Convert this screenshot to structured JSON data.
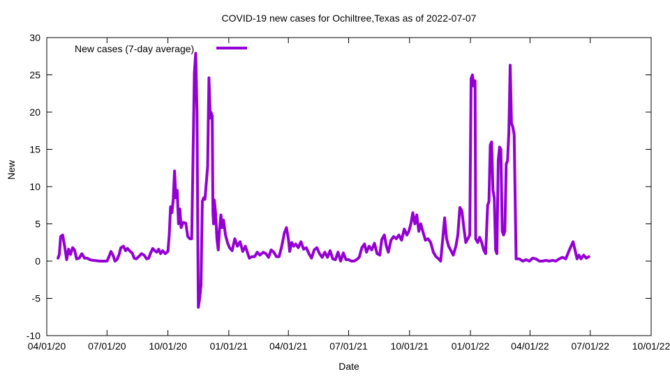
{
  "chart_data": {
    "type": "line",
    "title": "COVID-19 new cases for Ochiltree,Texas as of 2022-07-07",
    "xlabel": "Date",
    "ylabel": "New",
    "ylim": [
      -10,
      30
    ],
    "yticks": [
      "-10",
      "-5",
      "0",
      "5",
      "10",
      "15",
      "20",
      "25",
      "30"
    ],
    "xticks": [
      "04/01/20",
      "07/01/20",
      "10/01/20",
      "01/01/21",
      "04/01/21",
      "07/01/21",
      "10/01/21",
      "01/01/22",
      "04/01/22",
      "07/01/22",
      "10/01/22"
    ],
    "grid": false,
    "legend_position": "top-left",
    "color": "#9400d3",
    "series": [
      {
        "name": "New cases (7-day average)",
        "points": [
          [
            "2020-04-18",
            0.4
          ],
          [
            "2020-04-20",
            0.9
          ],
          [
            "2020-04-22",
            3.3
          ],
          [
            "2020-04-25",
            3.5
          ],
          [
            "2020-04-28",
            2.0
          ],
          [
            "2020-05-01",
            0.2
          ],
          [
            "2020-05-04",
            1.6
          ],
          [
            "2020-05-07",
            0.9
          ],
          [
            "2020-05-10",
            1.8
          ],
          [
            "2020-05-13",
            1.5
          ],
          [
            "2020-05-16",
            0.3
          ],
          [
            "2020-05-20",
            0.4
          ],
          [
            "2020-05-24",
            1.0
          ],
          [
            "2020-05-28",
            0.4
          ],
          [
            "2020-06-01",
            0.4
          ],
          [
            "2020-06-05",
            0.2
          ],
          [
            "2020-06-10",
            0.1
          ],
          [
            "2020-06-20",
            0.0
          ],
          [
            "2020-06-27",
            0.0
          ],
          [
            "2020-07-01",
            0.0
          ],
          [
            "2020-07-04",
            0.6
          ],
          [
            "2020-07-07",
            1.3
          ],
          [
            "2020-07-10",
            0.8
          ],
          [
            "2020-07-13",
            0.0
          ],
          [
            "2020-07-16",
            0.2
          ],
          [
            "2020-07-19",
            0.8
          ],
          [
            "2020-07-22",
            1.8
          ],
          [
            "2020-07-26",
            2.0
          ],
          [
            "2020-07-29",
            1.4
          ],
          [
            "2020-08-01",
            1.7
          ],
          [
            "2020-08-05",
            1.3
          ],
          [
            "2020-08-08",
            1.1
          ],
          [
            "2020-08-11",
            0.4
          ],
          [
            "2020-08-14",
            0.3
          ],
          [
            "2020-08-18",
            0.6
          ],
          [
            "2020-08-22",
            1.0
          ],
          [
            "2020-08-26",
            0.8
          ],
          [
            "2020-08-30",
            0.3
          ],
          [
            "2020-09-02",
            0.4
          ],
          [
            "2020-09-05",
            1.1
          ],
          [
            "2020-09-08",
            1.7
          ],
          [
            "2020-09-11",
            1.4
          ],
          [
            "2020-09-14",
            1.2
          ],
          [
            "2020-09-17",
            1.6
          ],
          [
            "2020-09-20",
            1.0
          ],
          [
            "2020-09-23",
            1.4
          ],
          [
            "2020-09-27",
            1.0
          ],
          [
            "2020-10-01",
            1.3
          ],
          [
            "2020-10-03",
            3.5
          ],
          [
            "2020-10-05",
            7.3
          ],
          [
            "2020-10-07",
            6.5
          ],
          [
            "2020-10-09",
            8.2
          ],
          [
            "2020-10-11",
            12.1
          ],
          [
            "2020-10-13",
            8.5
          ],
          [
            "2020-10-15",
            9.5
          ],
          [
            "2020-10-17",
            5.0
          ],
          [
            "2020-10-19",
            7.0
          ],
          [
            "2020-10-21",
            4.5
          ],
          [
            "2020-10-24",
            5.2
          ],
          [
            "2020-10-28",
            5.1
          ],
          [
            "2020-10-31",
            3.3
          ],
          [
            "2020-11-03",
            3.0
          ],
          [
            "2020-11-06",
            3.0
          ],
          [
            "2020-11-08",
            14.0
          ],
          [
            "2020-11-10",
            25.2
          ],
          [
            "2020-11-12",
            27.9
          ],
          [
            "2020-11-14",
            20.0
          ],
          [
            "2020-11-15",
            5.0
          ],
          [
            "2020-11-16",
            -6.2
          ],
          [
            "2020-11-18",
            -5.0
          ],
          [
            "2020-11-20",
            -3.2
          ],
          [
            "2020-11-22",
            8.0
          ],
          [
            "2020-11-24",
            8.5
          ],
          [
            "2020-11-26",
            8.3
          ],
          [
            "2020-11-28",
            10.5
          ],
          [
            "2020-11-30",
            12.7
          ],
          [
            "2020-12-02",
            24.6
          ],
          [
            "2020-12-04",
            19.2
          ],
          [
            "2020-12-05",
            20.0
          ],
          [
            "2020-12-07",
            19.5
          ],
          [
            "2020-12-08",
            6.5
          ],
          [
            "2020-12-09",
            5.0
          ],
          [
            "2020-12-10",
            8.2
          ],
          [
            "2020-12-12",
            6.5
          ],
          [
            "2020-12-14",
            3.0
          ],
          [
            "2020-12-16",
            1.5
          ],
          [
            "2020-12-18",
            4.3
          ],
          [
            "2020-12-20",
            6.2
          ],
          [
            "2020-12-22",
            4.5
          ],
          [
            "2020-12-24",
            5.5
          ],
          [
            "2020-12-27",
            3.5
          ],
          [
            "2020-12-30",
            2.5
          ],
          [
            "2021-01-02",
            1.8
          ],
          [
            "2021-01-06",
            1.4
          ],
          [
            "2021-01-10",
            3.0
          ],
          [
            "2021-01-14",
            2.0
          ],
          [
            "2021-01-18",
            2.6
          ],
          [
            "2021-01-22",
            1.3
          ],
          [
            "2021-01-26",
            2.0
          ],
          [
            "2021-01-29",
            1.2
          ],
          [
            "2021-02-01",
            0.4
          ],
          [
            "2021-02-05",
            0.6
          ],
          [
            "2021-02-09",
            0.6
          ],
          [
            "2021-02-13",
            1.2
          ],
          [
            "2021-02-17",
            0.8
          ],
          [
            "2021-02-22",
            1.2
          ],
          [
            "2021-02-26",
            1.0
          ],
          [
            "2021-03-02",
            0.5
          ],
          [
            "2021-03-06",
            1.5
          ],
          [
            "2021-03-10",
            1.2
          ],
          [
            "2021-03-14",
            0.6
          ],
          [
            "2021-03-18",
            0.6
          ],
          [
            "2021-03-22",
            2.0
          ],
          [
            "2021-03-26",
            3.8
          ],
          [
            "2021-03-29",
            4.5
          ],
          [
            "2021-04-01",
            3.0
          ],
          [
            "2021-04-03",
            1.3
          ],
          [
            "2021-04-06",
            2.5
          ],
          [
            "2021-04-09",
            2.0
          ],
          [
            "2021-04-12",
            2.3
          ],
          [
            "2021-04-16",
            1.8
          ],
          [
            "2021-04-20",
            2.6
          ],
          [
            "2021-04-24",
            1.6
          ],
          [
            "2021-04-28",
            1.8
          ],
          [
            "2021-05-02",
            1.0
          ],
          [
            "2021-05-06",
            0.4
          ],
          [
            "2021-05-10",
            1.5
          ],
          [
            "2021-05-14",
            1.8
          ],
          [
            "2021-05-18",
            1.0
          ],
          [
            "2021-05-22",
            0.5
          ],
          [
            "2021-05-26",
            1.2
          ],
          [
            "2021-05-30",
            0.5
          ],
          [
            "2021-06-03",
            1.4
          ],
          [
            "2021-06-07",
            0.3
          ],
          [
            "2021-06-11",
            0.2
          ],
          [
            "2021-06-15",
            1.2
          ],
          [
            "2021-06-19",
            0.0
          ],
          [
            "2021-06-23",
            1.1
          ],
          [
            "2021-06-27",
            0.2
          ],
          [
            "2021-07-01",
            0.2
          ],
          [
            "2021-07-05",
            0.0
          ],
          [
            "2021-07-09",
            0.0
          ],
          [
            "2021-07-13",
            0.2
          ],
          [
            "2021-07-17",
            0.5
          ],
          [
            "2021-07-21",
            1.8
          ],
          [
            "2021-07-25",
            2.3
          ],
          [
            "2021-07-28",
            1.2
          ],
          [
            "2021-08-01",
            2.0
          ],
          [
            "2021-08-05",
            1.5
          ],
          [
            "2021-08-09",
            2.4
          ],
          [
            "2021-08-13",
            1.0
          ],
          [
            "2021-08-17",
            0.8
          ],
          [
            "2021-08-20",
            2.9
          ],
          [
            "2021-08-24",
            3.5
          ],
          [
            "2021-08-27",
            2.0
          ],
          [
            "2021-08-30",
            1.2
          ],
          [
            "2021-09-03",
            2.8
          ],
          [
            "2021-09-07",
            3.3
          ],
          [
            "2021-09-11",
            3.0
          ],
          [
            "2021-09-15",
            3.5
          ],
          [
            "2021-09-19",
            2.8
          ],
          [
            "2021-09-23",
            4.3
          ],
          [
            "2021-09-27",
            3.5
          ],
          [
            "2021-09-30",
            4.0
          ],
          [
            "2021-10-03",
            5.0
          ],
          [
            "2021-10-06",
            6.5
          ],
          [
            "2021-10-09",
            5.0
          ],
          [
            "2021-10-12",
            6.2
          ],
          [
            "2021-10-15",
            4.0
          ],
          [
            "2021-10-18",
            5.0
          ],
          [
            "2021-10-21",
            4.0
          ],
          [
            "2021-10-25",
            2.8
          ],
          [
            "2021-10-29",
            3.0
          ],
          [
            "2021-11-02",
            2.5
          ],
          [
            "2021-11-06",
            1.2
          ],
          [
            "2021-11-10",
            0.6
          ],
          [
            "2021-11-14",
            0.3
          ],
          [
            "2021-11-17",
            0.0
          ],
          [
            "2021-11-20",
            2.8
          ],
          [
            "2021-11-23",
            5.8
          ],
          [
            "2021-11-26",
            3.0
          ],
          [
            "2021-11-29",
            2.0
          ],
          [
            "2021-12-02",
            1.5
          ],
          [
            "2021-12-06",
            0.8
          ],
          [
            "2021-12-10",
            2.0
          ],
          [
            "2021-12-13",
            3.5
          ],
          [
            "2021-12-16",
            7.2
          ],
          [
            "2021-12-19",
            6.8
          ],
          [
            "2021-12-22",
            4.5
          ],
          [
            "2021-12-25",
            2.5
          ],
          [
            "2021-12-28",
            3.0
          ],
          [
            "2021-12-31",
            3.5
          ],
          [
            "2022-01-02",
            24.5
          ],
          [
            "2022-01-04",
            25.0
          ],
          [
            "2022-01-06",
            23.5
          ],
          [
            "2022-01-08",
            24.2
          ],
          [
            "2022-01-09",
            3.0
          ],
          [
            "2022-01-12",
            2.5
          ],
          [
            "2022-01-15",
            3.2
          ],
          [
            "2022-01-18",
            2.5
          ],
          [
            "2022-01-21",
            1.5
          ],
          [
            "2022-01-24",
            1.0
          ],
          [
            "2022-01-27",
            7.5
          ],
          [
            "2022-01-29",
            8.0
          ],
          [
            "2022-01-31",
            15.6
          ],
          [
            "2022-02-02",
            16.0
          ],
          [
            "2022-02-04",
            9.5
          ],
          [
            "2022-02-06",
            8.5
          ],
          [
            "2022-02-08",
            1.5
          ],
          [
            "2022-02-10",
            1.0
          ],
          [
            "2022-02-12",
            13.5
          ],
          [
            "2022-02-14",
            15.3
          ],
          [
            "2022-02-16",
            15.0
          ],
          [
            "2022-02-18",
            4.0
          ],
          [
            "2022-02-20",
            3.5
          ],
          [
            "2022-02-22",
            4.0
          ],
          [
            "2022-02-24",
            13.0
          ],
          [
            "2022-02-26",
            13.5
          ],
          [
            "2022-02-28",
            17.3
          ],
          [
            "2022-03-02",
            26.3
          ],
          [
            "2022-03-04",
            18.5
          ],
          [
            "2022-03-06",
            18.0
          ],
          [
            "2022-03-08",
            17.0
          ],
          [
            "2022-03-11",
            0.3
          ],
          [
            "2022-03-16",
            0.3
          ],
          [
            "2022-03-21",
            0.0
          ],
          [
            "2022-03-26",
            0.2
          ],
          [
            "2022-03-31",
            0.0
          ],
          [
            "2022-04-05",
            0.4
          ],
          [
            "2022-04-10",
            0.3
          ],
          [
            "2022-04-15",
            0.0
          ],
          [
            "2022-04-20",
            0.0
          ],
          [
            "2022-04-25",
            0.1
          ],
          [
            "2022-04-30",
            0.0
          ],
          [
            "2022-05-05",
            0.1
          ],
          [
            "2022-05-10",
            0.0
          ],
          [
            "2022-05-15",
            0.3
          ],
          [
            "2022-05-20",
            0.5
          ],
          [
            "2022-05-25",
            0.3
          ],
          [
            "2022-05-30",
            1.4
          ],
          [
            "2022-06-02",
            2.0
          ],
          [
            "2022-06-05",
            2.6
          ],
          [
            "2022-06-08",
            1.5
          ],
          [
            "2022-06-11",
            0.3
          ],
          [
            "2022-06-14",
            0.8
          ],
          [
            "2022-06-17",
            0.3
          ],
          [
            "2022-06-21",
            0.8
          ],
          [
            "2022-06-25",
            0.4
          ],
          [
            "2022-06-29",
            0.6
          ]
        ]
      }
    ]
  }
}
